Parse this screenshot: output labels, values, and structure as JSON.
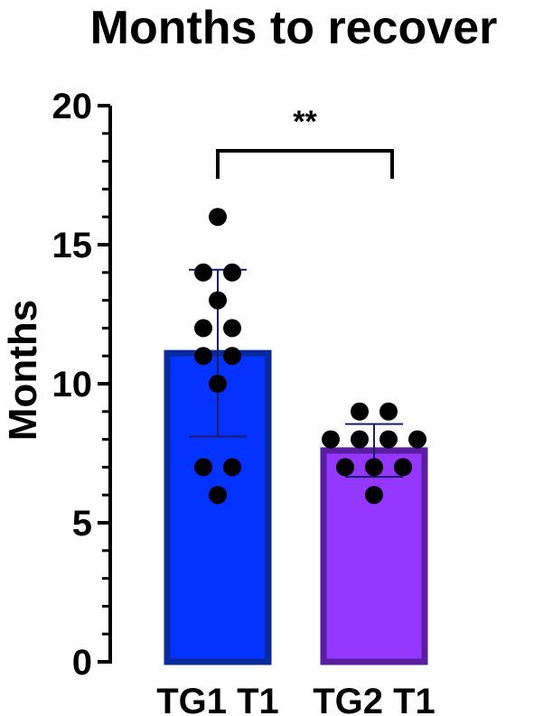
{
  "chart_data": {
    "type": "bar",
    "title": "Months to recover",
    "xlabel": "",
    "ylabel": "Months",
    "ylim": [
      0,
      20
    ],
    "yticks": [
      "0",
      "5",
      "10",
      "15",
      "20"
    ],
    "categories": [
      "TG1 T1",
      "TG2 T1"
    ],
    "values": [
      11.1,
      7.6
    ],
    "sd": [
      3.0,
      0.95
    ],
    "points": [
      [
        16,
        14,
        14,
        13,
        12,
        12,
        11,
        11,
        10,
        7,
        7,
        6
      ],
      [
        9,
        9,
        8,
        8,
        8,
        8,
        7,
        7,
        7,
        6
      ]
    ],
    "significance": "**",
    "grid": false
  },
  "colors": {
    "bar_fills": [
      "#0433ff",
      "#9437ff"
    ],
    "bar_edges": [
      "#0a2a9c",
      "#5a1fa0"
    ],
    "errorbar": "#1a1a6e",
    "points": "#000000"
  }
}
